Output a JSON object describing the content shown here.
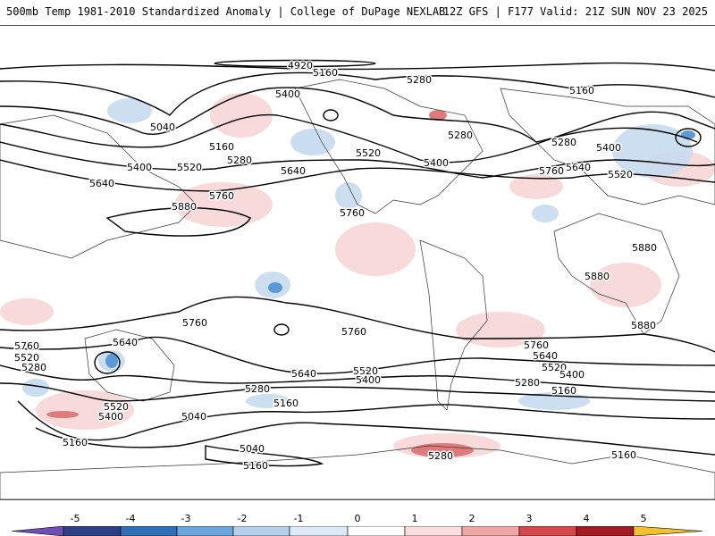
{
  "header": {
    "title_left": "500mb Temp 1981-2010 Standardized Anomaly | College of DuPage NEXLAB",
    "title_right": "12Z GFS | F177 Valid: 21Z SUN NOV 23 2025"
  },
  "contour_labels": [
    "4920",
    "5160",
    "5280",
    "5400",
    "5520",
    "5640",
    "5760",
    "5880",
    "5040"
  ],
  "colorbar": {
    "ticks": [
      "-5",
      "-4",
      "-3",
      "-2",
      "-1",
      "0",
      "1",
      "2",
      "3",
      "4",
      "5"
    ],
    "colors": [
      "#6f4fb0",
      "#2b3f86",
      "#2f6fb5",
      "#6aa6dc",
      "#b4d0ec",
      "#dde9f6",
      "#ffffff",
      "#f9dede",
      "#f0a8a6",
      "#d4474a",
      "#a31b22",
      "#6e0e12",
      "#f2c12e"
    ]
  }
}
